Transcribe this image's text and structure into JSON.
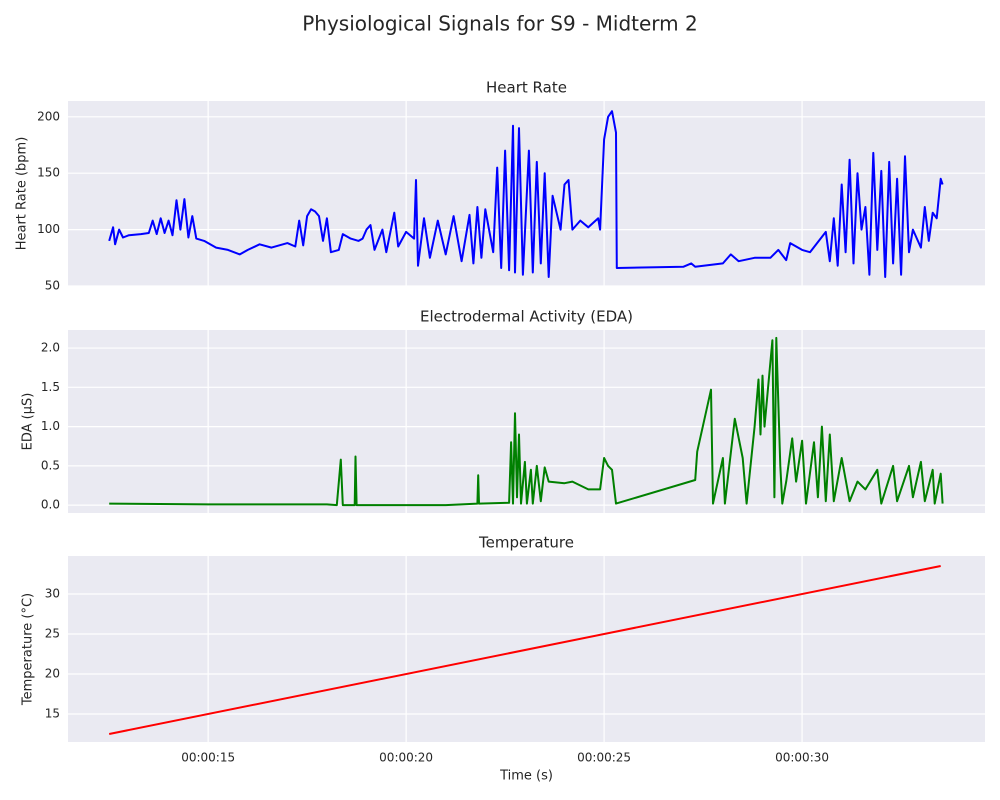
{
  "title": "Physiological Signals for S9 - Midterm 2",
  "chart_data": [
    {
      "type": "line",
      "title": "Heart Rate",
      "y_label": "Heart Rate (bpm)",
      "color": "#0000ff",
      "grid": true,
      "xlim": [
        11.46,
        34.62
      ],
      "ylim": [
        50,
        214
      ],
      "xticks": [
        {
          "value": 15,
          "label": "00:00:15"
        },
        {
          "value": 20,
          "label": "00:00:20"
        },
        {
          "value": 25,
          "label": "00:00:25"
        },
        {
          "value": 30,
          "label": "00:00:30"
        }
      ],
      "yticks": [
        50,
        100,
        150,
        200
      ],
      "x": [
        12.5,
        12.6,
        12.65,
        12.75,
        12.85,
        13.0,
        13.3,
        13.5,
        13.6,
        13.7,
        13.8,
        13.9,
        14.0,
        14.1,
        14.2,
        14.3,
        14.4,
        14.5,
        14.6,
        14.7,
        14.9,
        15.2,
        15.5,
        15.8,
        16.0,
        16.3,
        16.6,
        17.0,
        17.2,
        17.3,
        17.4,
        17.5,
        17.6,
        17.7,
        17.8,
        17.9,
        18.0,
        18.1,
        18.3,
        18.4,
        18.6,
        18.8,
        18.9,
        19.0,
        19.1,
        19.2,
        19.4,
        19.5,
        19.7,
        19.8,
        20.0,
        20.2,
        20.25,
        20.3,
        20.45,
        20.6,
        20.8,
        21.0,
        21.2,
        21.4,
        21.6,
        21.7,
        21.8,
        21.9,
        22.0,
        22.2,
        22.3,
        22.4,
        22.5,
        22.6,
        22.7,
        22.75,
        22.85,
        22.95,
        23.1,
        23.2,
        23.3,
        23.4,
        23.5,
        23.6,
        23.7,
        23.9,
        24.0,
        24.1,
        24.2,
        24.4,
        24.6,
        24.85,
        24.9,
        24.95,
        25.0,
        25.1,
        25.2,
        25.3,
        25.32,
        27.0,
        27.2,
        27.3,
        28.0,
        28.2,
        28.4,
        28.8,
        29.2,
        29.4,
        29.6,
        29.7,
        30.0,
        30.2,
        30.6,
        30.7,
        30.8,
        30.9,
        31.0,
        31.1,
        31.2,
        31.3,
        31.4,
        31.5,
        31.6,
        31.7,
        31.8,
        31.9,
        32.0,
        32.1,
        32.2,
        32.3,
        32.4,
        32.5,
        32.6,
        32.7,
        32.8,
        33.0,
        33.1,
        33.2,
        33.3,
        33.4,
        33.5,
        33.55
      ],
      "values": [
        90,
        102,
        87,
        100,
        93,
        95,
        96,
        97,
        108,
        96,
        110,
        97,
        108,
        95,
        126,
        100,
        127,
        93,
        112,
        92,
        90,
        84,
        82,
        78,
        82,
        87,
        84,
        88,
        85,
        108,
        86,
        112,
        118,
        116,
        112,
        90,
        110,
        80,
        82,
        96,
        92,
        90,
        92,
        100,
        104,
        82,
        100,
        80,
        115,
        85,
        98,
        92,
        144,
        68,
        110,
        75,
        108,
        78,
        112,
        72,
        113,
        70,
        120,
        75,
        118,
        80,
        155,
        66,
        170,
        64,
        192,
        62,
        190,
        60,
        170,
        62,
        160,
        70,
        150,
        58,
        130,
        100,
        140,
        144,
        100,
        108,
        102,
        110,
        100,
        140,
        180,
        200,
        205,
        186,
        66,
        67,
        70,
        67,
        70,
        78,
        72,
        75,
        75,
        82,
        73,
        88,
        82,
        80,
        98,
        72,
        110,
        68,
        140,
        80,
        162,
        70,
        150,
        100,
        120,
        60,
        168,
        82,
        152,
        58,
        160,
        70,
        145,
        60,
        165,
        80,
        100,
        84,
        120,
        90,
        115,
        110,
        145,
        140
      ]
    },
    {
      "type": "line",
      "title": "Electrodermal Activity (EDA)",
      "y_label": "EDA (μS)",
      "color": "#008000",
      "grid": true,
      "xlim": [
        11.46,
        34.62
      ],
      "ylim": [
        -0.1,
        2.23
      ],
      "xticks": [
        {
          "value": 15,
          "label": "00:00:15"
        },
        {
          "value": 20,
          "label": "00:00:20"
        },
        {
          "value": 25,
          "label": "00:00:25"
        },
        {
          "value": 30,
          "label": "00:00:30"
        }
      ],
      "yticks": [
        {
          "value": 0,
          "label": "0.0"
        },
        0.5,
        {
          "value": 1,
          "label": "1.0"
        },
        1.5,
        {
          "value": 2,
          "label": "2.0"
        }
      ],
      "x": [
        12.5,
        15,
        18,
        18.25,
        18.35,
        18.4,
        18.7,
        18.72,
        18.75,
        21,
        21.8,
        21.82,
        21.84,
        22.6,
        22.65,
        22.7,
        22.75,
        22.8,
        22.85,
        22.9,
        23.0,
        23.05,
        23.15,
        23.2,
        23.3,
        23.4,
        23.5,
        23.6,
        24.0,
        24.2,
        24.6,
        24.9,
        25.0,
        25.1,
        25.2,
        25.3,
        27.3,
        27.35,
        27.7,
        27.75,
        28.0,
        28.05,
        28.3,
        28.5,
        28.6,
        28.8,
        28.9,
        28.95,
        29.0,
        29.05,
        29.25,
        29.3,
        29.35,
        29.45,
        29.5,
        29.6,
        29.75,
        29.85,
        30.0,
        30.1,
        30.3,
        30.4,
        30.5,
        30.6,
        30.7,
        30.8,
        31.0,
        31.2,
        31.4,
        31.6,
        31.9,
        32.0,
        32.3,
        32.4,
        32.7,
        32.8,
        33.0,
        33.1,
        33.3,
        33.35,
        33.5,
        33.55
      ],
      "values": [
        0.02,
        0.01,
        0.01,
        0.0,
        0.58,
        0.0,
        0.0,
        0.62,
        0.0,
        0.0,
        0.02,
        0.38,
        0.02,
        0.03,
        0.8,
        0.02,
        1.17,
        0.1,
        0.9,
        0.02,
        0.55,
        0.02,
        0.45,
        0.02,
        0.5,
        0.05,
        0.48,
        0.3,
        0.28,
        0.3,
        0.2,
        0.2,
        0.6,
        0.5,
        0.45,
        0.02,
        0.32,
        0.68,
        1.47,
        0.02,
        0.6,
        0.02,
        1.1,
        0.6,
        0.02,
        1.0,
        1.6,
        0.9,
        1.65,
        1.0,
        2.1,
        0.1,
        2.13,
        0.5,
        0.02,
        0.3,
        0.85,
        0.3,
        0.82,
        0.02,
        0.8,
        0.1,
        1.0,
        0.05,
        0.9,
        0.05,
        0.6,
        0.05,
        0.3,
        0.2,
        0.45,
        0.02,
        0.5,
        0.05,
        0.5,
        0.1,
        0.55,
        0.05,
        0.45,
        0.02,
        0.4,
        0.02
      ]
    },
    {
      "type": "line",
      "title": "Temperature",
      "y_label": "Temperature (°C)",
      "x_label": "Time (s)",
      "color": "#ff0000",
      "grid": true,
      "xlim": [
        11.46,
        34.62
      ],
      "ylim": [
        11.5,
        34.75
      ],
      "xticks": [
        {
          "value": 15,
          "label": "00:00:15"
        },
        {
          "value": 20,
          "label": "00:00:20"
        },
        {
          "value": 25,
          "label": "00:00:25"
        },
        {
          "value": 30,
          "label": "00:00:30"
        }
      ],
      "yticks": [
        15,
        20,
        25,
        30
      ],
      "x": [
        12.5,
        33.5
      ],
      "values": [
        12.5,
        33.5
      ]
    }
  ]
}
